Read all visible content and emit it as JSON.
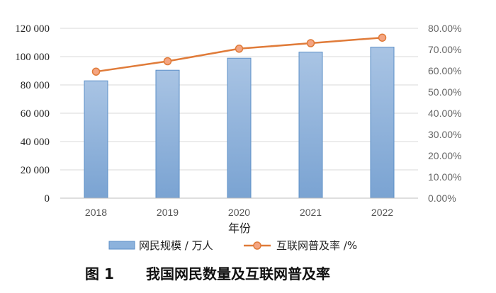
{
  "figure": {
    "caption_number": "图 1",
    "caption_text": "我国网民数量及互联网普及率"
  },
  "chart_data": {
    "type": "bar",
    "xlabel": "年份",
    "categories": [
      "2018",
      "2019",
      "2020",
      "2021",
      "2022"
    ],
    "series": [
      {
        "name": "网民规模 / 万人",
        "type": "bar",
        "axis": "left",
        "values": [
          82900,
          90400,
          98900,
          103200,
          106700
        ],
        "color": "#8cb2dc"
      },
      {
        "name": "互联网普及率 /%",
        "type": "line",
        "axis": "right",
        "values": [
          59.6,
          64.5,
          70.4,
          73.0,
          75.6
        ],
        "color": "#e07b39"
      }
    ],
    "y_left": {
      "ylim": [
        0,
        120000
      ],
      "ticks": [
        0,
        20000,
        40000,
        60000,
        80000,
        100000,
        120000
      ],
      "tick_labels": [
        "0",
        "20 000",
        "40 000",
        "60 000",
        "80 000",
        "100 000",
        "120 000"
      ]
    },
    "y_right": {
      "ylim": [
        0,
        80
      ],
      "ticks": [
        0,
        10,
        20,
        30,
        40,
        50,
        60,
        70,
        80
      ],
      "tick_labels": [
        "0.00%",
        "10.00%",
        "20.00%",
        "30.00%",
        "40.00%",
        "50.00%",
        "60.00%",
        "70.00%",
        "80.00%"
      ]
    },
    "grid": true,
    "legend": "bottom"
  }
}
